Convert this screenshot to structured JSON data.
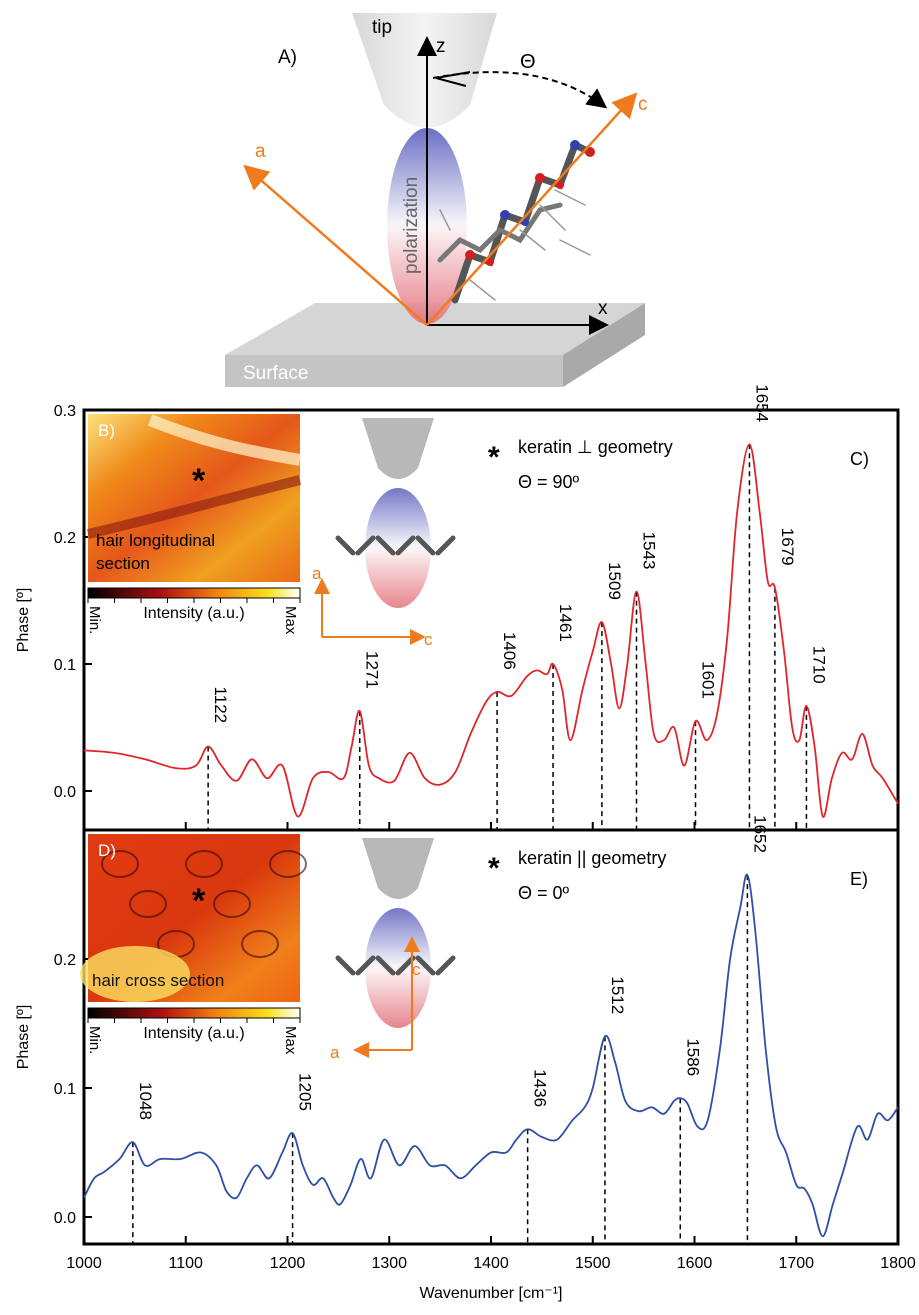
{
  "diagram": {
    "panel": "A)",
    "tip": "tip",
    "z": "z",
    "x": "x",
    "theta": "Θ",
    "axis_a": "a",
    "axis_c": "c",
    "polarization": "polarization",
    "surface": "Surface"
  },
  "colors": {
    "orange": "#f07a1e",
    "red_trace": "#e0262b",
    "blue_trace": "#2e4fa6",
    "pol_blue": "#5b5fbd",
    "pol_red": "#e3707a"
  },
  "chart_data": [
    {
      "type": "line",
      "panel": "C)",
      "inset_panel": "B)",
      "inset_label": "hair longitudinal section",
      "colorbar": {
        "min": "Min.",
        "label": "Intensity (a.u.)",
        "max": "Max"
      },
      "annotation": "keratin ⊥ geometry",
      "theta": "Θ = 90º",
      "ylabel": "Phase [º]",
      "xlim": [
        1000,
        1800
      ],
      "ylim": [
        -0.03,
        0.3
      ],
      "yticks": [
        "0.0",
        "0.1",
        "0.2",
        "0.3"
      ],
      "series": [
        {
          "x": [
            1000,
            1030,
            1060,
            1090,
            1110,
            1122,
            1135,
            1150,
            1165,
            1180,
            1195,
            1210,
            1225,
            1240,
            1255,
            1263,
            1271,
            1280,
            1290,
            1305,
            1320,
            1335,
            1350,
            1365,
            1380,
            1395,
            1406,
            1420,
            1435,
            1445,
            1455,
            1461,
            1470,
            1478,
            1490,
            1500,
            1509,
            1518,
            1526,
            1534,
            1543,
            1552,
            1560,
            1570,
            1580,
            1590,
            1601,
            1612,
            1622,
            1632,
            1642,
            1654,
            1664,
            1672,
            1679,
            1688,
            1696,
            1703,
            1710,
            1718,
            1726,
            1735,
            1745,
            1755,
            1765,
            1775,
            1785,
            1800
          ],
          "y": [
            0.032,
            0.03,
            0.025,
            0.018,
            0.02,
            0.035,
            0.02,
            0.008,
            0.025,
            0.01,
            0.02,
            -0.02,
            0.01,
            0.015,
            0.01,
            0.035,
            0.063,
            0.02,
            0.01,
            0.008,
            0.03,
            0.01,
            0.005,
            0.015,
            0.045,
            0.07,
            0.078,
            0.075,
            0.09,
            0.095,
            0.092,
            0.1,
            0.08,
            0.04,
            0.08,
            0.11,
            0.133,
            0.1,
            0.065,
            0.1,
            0.157,
            0.1,
            0.045,
            0.04,
            0.05,
            0.02,
            0.055,
            0.04,
            0.06,
            0.12,
            0.22,
            0.273,
            0.22,
            0.165,
            0.16,
            0.11,
            0.05,
            0.04,
            0.067,
            0.035,
            -0.02,
            0.01,
            0.03,
            0.025,
            0.045,
            0.02,
            0.01,
            -0.01
          ]
        }
      ],
      "peaks": [
        {
          "label": "1122",
          "x": 1122,
          "y": 0.035
        },
        {
          "label": "1271",
          "x": 1271,
          "y": 0.063
        },
        {
          "label": "1406",
          "x": 1406,
          "y": 0.078
        },
        {
          "label": "1461",
          "x": 1461,
          "y": 0.1
        },
        {
          "label": "1509",
          "x": 1509,
          "y": 0.133
        },
        {
          "label": "1543",
          "x": 1543,
          "y": 0.157
        },
        {
          "label": "1601",
          "x": 1601,
          "y": 0.055
        },
        {
          "label": "1654",
          "x": 1654,
          "y": 0.273
        },
        {
          "label": "1679",
          "x": 1679,
          "y": 0.16
        },
        {
          "label": "1710",
          "x": 1710,
          "y": 0.067
        }
      ]
    },
    {
      "type": "line",
      "panel": "E)",
      "inset_panel": "D)",
      "inset_label": "hair cross section",
      "colorbar": {
        "min": "Min.",
        "label": "Intensity (a.u.)",
        "max": "Max"
      },
      "annotation": "keratin || geometry",
      "theta": "Θ = 0º",
      "ylabel": "Phase [º]",
      "xlabel": "Wavenumber [cm⁻¹]",
      "xlim": [
        1000,
        1800
      ],
      "ylim": [
        -0.02,
        0.3
      ],
      "yticks": [
        "0.0",
        "0.1",
        "0.2"
      ],
      "xticks": [
        "1000",
        "1100",
        "1200",
        "1300",
        "1400",
        "1500",
        "1600",
        "1700",
        "1800"
      ],
      "series": [
        {
          "x": [
            1000,
            1010,
            1020,
            1035,
            1048,
            1060,
            1075,
            1095,
            1115,
            1130,
            1140,
            1150,
            1160,
            1170,
            1182,
            1195,
            1205,
            1215,
            1225,
            1235,
            1245,
            1252,
            1262,
            1272,
            1282,
            1295,
            1310,
            1325,
            1340,
            1355,
            1370,
            1385,
            1400,
            1415,
            1425,
            1436,
            1450,
            1465,
            1480,
            1492,
            1500,
            1512,
            1522,
            1532,
            1545,
            1558,
            1570,
            1580,
            1586,
            1593,
            1603,
            1613,
            1625,
            1635,
            1645,
            1652,
            1660,
            1670,
            1680,
            1690,
            1700,
            1708,
            1716,
            1726,
            1736,
            1746,
            1760,
            1770,
            1780,
            1790,
            1800
          ],
          "y": [
            0.015,
            0.03,
            0.035,
            0.045,
            0.058,
            0.04,
            0.045,
            0.045,
            0.05,
            0.04,
            0.02,
            0.015,
            0.03,
            0.04,
            0.03,
            0.05,
            0.065,
            0.04,
            0.025,
            0.03,
            0.015,
            0.01,
            0.025,
            0.045,
            0.03,
            0.06,
            0.04,
            0.055,
            0.04,
            0.04,
            0.03,
            0.04,
            0.05,
            0.05,
            0.06,
            0.068,
            0.062,
            0.06,
            0.075,
            0.085,
            0.1,
            0.14,
            0.12,
            0.09,
            0.082,
            0.085,
            0.08,
            0.09,
            0.092,
            0.088,
            0.07,
            0.075,
            0.13,
            0.2,
            0.24,
            0.265,
            0.22,
            0.13,
            0.07,
            0.05,
            0.025,
            0.022,
            0.01,
            -0.015,
            0.01,
            0.035,
            0.07,
            0.06,
            0.08,
            0.075,
            0.085
          ]
        }
      ],
      "peaks": [
        {
          "label": "1048",
          "x": 1048,
          "y": 0.058
        },
        {
          "label": "1205",
          "x": 1205,
          "y": 0.065
        },
        {
          "label": "1436",
          "x": 1436,
          "y": 0.068
        },
        {
          "label": "1512",
          "x": 1512,
          "y": 0.14
        },
        {
          "label": "1586",
          "x": 1586,
          "y": 0.092
        },
        {
          "label": "1652",
          "x": 1652,
          "y": 0.265
        }
      ]
    }
  ]
}
